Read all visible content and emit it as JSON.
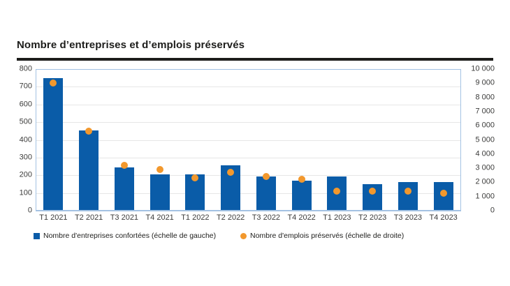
{
  "title": "Nombre d’entreprises et d’emplois préservés",
  "colors": {
    "bar": "#0a5ca8",
    "dot": "#f2982d",
    "plot_border": "#a3c2e3",
    "gridline": "#e6e6e6",
    "title_text": "#1d1d1b",
    "title_rule": "#1d1d1b",
    "axis_text": "#3b3b3a"
  },
  "chart_data": {
    "type": "bar",
    "title": "Nombre d’entreprises et d’emplois préservés",
    "categories": [
      "T1 2021",
      "T2 2021",
      "T3 2021",
      "T4 2021",
      "T1 2022",
      "T2 2022",
      "T3 2022",
      "T4 2022",
      "T1 2023",
      "T2 2023",
      "T3 2023",
      "T4 2023"
    ],
    "series": [
      {
        "name": "Nombre d'entreprises confortées (échelle de gauche)",
        "type": "bar",
        "axis": "left",
        "color": "#0a5ca8",
        "values": [
          750,
          455,
          245,
          205,
          205,
          255,
          195,
          170,
          195,
          150,
          160,
          160
        ]
      },
      {
        "name": "Nombre d'emplois préservés (échelle de droite)",
        "type": "scatter",
        "axis": "right",
        "color": "#f2982d",
        "values": [
          9000,
          5600,
          3200,
          2900,
          2300,
          2700,
          2400,
          2200,
          1400,
          1400,
          1400,
          1250
        ]
      }
    ],
    "left_axis": {
      "min": 0,
      "max": 800,
      "step": 100,
      "ticks": [
        "800",
        "700",
        "600",
        "500",
        "400",
        "300",
        "200",
        "100",
        "0"
      ]
    },
    "right_axis": {
      "min": 0,
      "max": 10000,
      "step": 1000,
      "ticks": [
        "10 000",
        "9 000",
        "8 000",
        "7 000",
        "6 000",
        "5 000",
        "4 000",
        "3 000",
        "2 000",
        "1 000",
        "0"
      ]
    },
    "grid": true,
    "legend_position": "bottom"
  }
}
